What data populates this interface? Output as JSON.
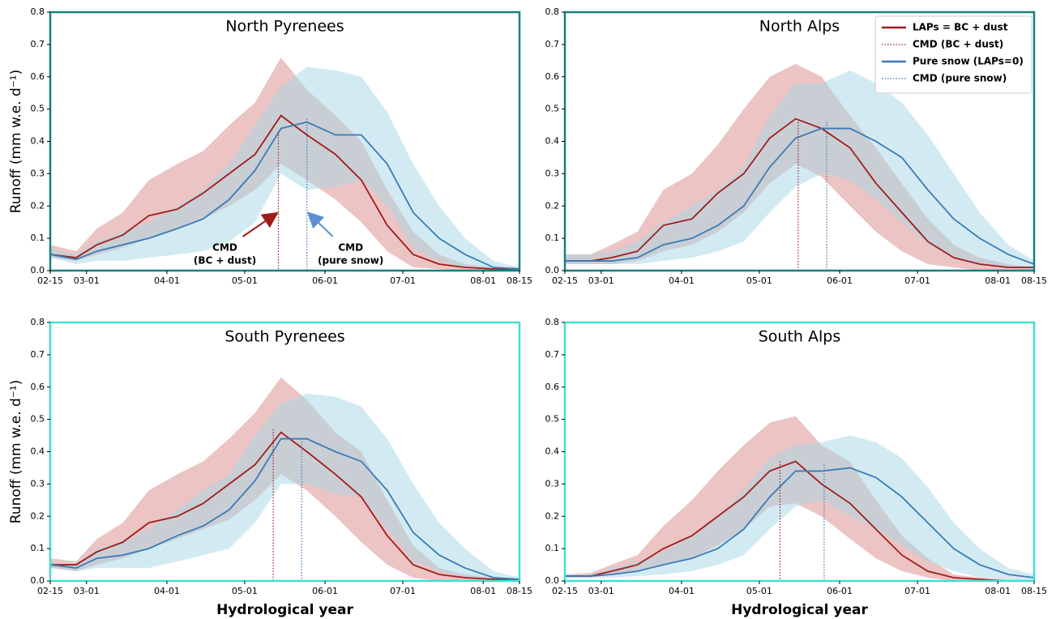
{
  "chart_data": [
    {
      "type": "line",
      "title": "North Pyrenees",
      "ylabel": "Runoff (mm w.e. d⁻¹)",
      "frame_color": "#1a7f7f",
      "x": [
        "02-15",
        "02-25",
        "03-05",
        "03-15",
        "03-25",
        "04-05",
        "04-15",
        "04-25",
        "05-05",
        "05-15",
        "05-25",
        "06-05",
        "06-15",
        "06-25",
        "07-05",
        "07-15",
        "07-25",
        "08-05",
        "08-15"
      ],
      "xlim": [
        "02-15",
        "08-15"
      ],
      "xticks": [
        "02-15",
        "03-01",
        "04-01",
        "05-01",
        "06-01",
        "07-01",
        "08-01",
        "08-15"
      ],
      "ylim": [
        0,
        0.8
      ],
      "yticks": [
        {
          "value": 0,
          "label": "0.0"
        },
        {
          "value": 0.1,
          "label": "0.1"
        },
        {
          "value": 0.2,
          "label": "0.2"
        },
        {
          "value": 0.3,
          "label": "0.3"
        },
        {
          "value": 0.4,
          "label": "0.4"
        },
        {
          "value": 0.5,
          "label": "0.5"
        },
        {
          "value": 0.6,
          "label": "0.6"
        },
        {
          "value": 0.7,
          "label": "0.7"
        },
        {
          "value": 0.8,
          "label": "0.8"
        }
      ],
      "series": [
        {
          "color": "#a01c1c",
          "band_color": "#d98a8a",
          "values": [
            0.05,
            0.04,
            0.08,
            0.11,
            0.17,
            0.19,
            0.24,
            0.3,
            0.36,
            0.48,
            0.42,
            0.36,
            0.28,
            0.14,
            0.05,
            0.02,
            0.01,
            0.005,
            0.005
          ],
          "low": [
            0.04,
            0.03,
            0.05,
            0.07,
            0.1,
            0.13,
            0.16,
            0.2,
            0.25,
            0.33,
            0.28,
            0.22,
            0.15,
            0.06,
            0.01,
            0.005,
            0,
            0,
            0
          ],
          "high": [
            0.08,
            0.06,
            0.13,
            0.18,
            0.28,
            0.33,
            0.37,
            0.45,
            0.52,
            0.66,
            0.56,
            0.48,
            0.4,
            0.25,
            0.12,
            0.05,
            0.02,
            0.01,
            0.01
          ]
        },
        {
          "color": "#3b7ab5",
          "band_color": "#a6d8e6",
          "values": [
            0.05,
            0.035,
            0.06,
            0.08,
            0.1,
            0.13,
            0.16,
            0.22,
            0.31,
            0.44,
            0.46,
            0.42,
            0.42,
            0.33,
            0.18,
            0.1,
            0.05,
            0.01,
            0.005
          ],
          "low": [
            0.04,
            0.02,
            0.03,
            0.03,
            0.04,
            0.05,
            0.06,
            0.09,
            0.15,
            0.3,
            0.25,
            0.26,
            0.28,
            0.2,
            0.07,
            0.03,
            0.01,
            0,
            0
          ],
          "high": [
            0.07,
            0.05,
            0.09,
            0.12,
            0.15,
            0.2,
            0.25,
            0.33,
            0.45,
            0.57,
            0.63,
            0.62,
            0.6,
            0.49,
            0.33,
            0.2,
            0.1,
            0.03,
            0.01
          ]
        }
      ],
      "cmd": [
        {
          "color": "#a01c1c",
          "x": "05-14",
          "y": 0.43
        },
        {
          "color": "#3b7ab5",
          "x": "05-25",
          "y": 0.47
        }
      ],
      "annotations": [
        {
          "lines": [
            "CMD",
            "(BC + dust)"
          ],
          "color": "#a01c1c"
        },
        {
          "lines": [
            "CMD",
            "(pure snow)"
          ],
          "color": "#5b8fd0"
        }
      ]
    },
    {
      "type": "line",
      "title": "North Alps",
      "frame_color": "#1a7f7f",
      "legend": "upper right",
      "x": [
        "02-15",
        "02-25",
        "03-05",
        "03-15",
        "03-25",
        "04-05",
        "04-15",
        "04-25",
        "05-05",
        "05-15",
        "05-25",
        "06-05",
        "06-15",
        "06-25",
        "07-05",
        "07-15",
        "07-25",
        "08-05",
        "08-15"
      ],
      "xlim": [
        "02-15",
        "08-15"
      ],
      "xticks": [
        "02-15",
        "03-01",
        "04-01",
        "05-01",
        "06-01",
        "07-01",
        "08-01",
        "08-15"
      ],
      "ylim": [
        0,
        0.8
      ],
      "yticks": [
        {
          "value": 0,
          "label": "0.0"
        },
        {
          "value": 0.1,
          "label": "0.1"
        },
        {
          "value": 0.2,
          "label": "0.2"
        },
        {
          "value": 0.3,
          "label": "0.3"
        },
        {
          "value": 0.4,
          "label": "0.4"
        },
        {
          "value": 0.5,
          "label": "0.5"
        },
        {
          "value": 0.6,
          "label": "0.6"
        },
        {
          "value": 0.7,
          "label": "0.7"
        },
        {
          "value": 0.8,
          "label": "0.8"
        }
      ],
      "series": [
        {
          "name": "LAPs = BC + dust",
          "color": "#a01c1c",
          "band_color": "#d98a8a",
          "values": [
            0.03,
            0.03,
            0.04,
            0.06,
            0.14,
            0.16,
            0.24,
            0.3,
            0.41,
            0.47,
            0.44,
            0.38,
            0.27,
            0.18,
            0.09,
            0.04,
            0.02,
            0.01,
            0.01
          ],
          "low": [
            0.02,
            0.02,
            0.02,
            0.03,
            0.06,
            0.08,
            0.12,
            0.18,
            0.27,
            0.33,
            0.29,
            0.2,
            0.12,
            0.06,
            0.02,
            0.01,
            0,
            0,
            0
          ],
          "high": [
            0.05,
            0.05,
            0.08,
            0.12,
            0.25,
            0.3,
            0.39,
            0.5,
            0.6,
            0.64,
            0.6,
            0.48,
            0.38,
            0.27,
            0.16,
            0.08,
            0.04,
            0.02,
            0.01
          ]
        },
        {
          "name": "Pure snow (LAPs=0)",
          "color": "#3b7ab5",
          "band_color": "#a6d8e6",
          "values": [
            0.03,
            0.03,
            0.03,
            0.04,
            0.08,
            0.1,
            0.14,
            0.2,
            0.32,
            0.41,
            0.44,
            0.44,
            0.4,
            0.35,
            0.25,
            0.16,
            0.1,
            0.05,
            0.02
          ],
          "low": [
            0.02,
            0.02,
            0.02,
            0.02,
            0.03,
            0.04,
            0.06,
            0.09,
            0.18,
            0.26,
            0.3,
            0.28,
            0.22,
            0.15,
            0.08,
            0.04,
            0.02,
            0.01,
            0
          ],
          "high": [
            0.05,
            0.05,
            0.06,
            0.09,
            0.15,
            0.2,
            0.25,
            0.32,
            0.48,
            0.58,
            0.58,
            0.62,
            0.58,
            0.52,
            0.42,
            0.3,
            0.18,
            0.08,
            0.03
          ]
        }
      ],
      "cmd": [
        {
          "name": "CMD (BC + dust)",
          "color": "#a01c1c",
          "x": "05-16",
          "y": 0.46
        },
        {
          "name": "CMD (pure snow)",
          "color": "#3b7ab5",
          "x": "05-27",
          "y": 0.46
        }
      ]
    },
    {
      "type": "line",
      "title": "South Pyrenees",
      "ylabel": "Runoff (mm w.e. d⁻¹)",
      "xlabel": "Hydrological year",
      "frame_color": "#40e0d0",
      "x": [
        "02-15",
        "02-25",
        "03-05",
        "03-15",
        "03-25",
        "04-05",
        "04-15",
        "04-25",
        "05-05",
        "05-15",
        "05-25",
        "06-05",
        "06-15",
        "06-25",
        "07-05",
        "07-15",
        "07-25",
        "08-05",
        "08-15"
      ],
      "xlim": [
        "02-15",
        "08-15"
      ],
      "xticks": [
        "02-15",
        "03-01",
        "04-01",
        "05-01",
        "06-01",
        "07-01",
        "08-01",
        "08-15"
      ],
      "ylim": [
        0,
        0.8
      ],
      "yticks": [
        {
          "value": 0,
          "label": "0.0"
        },
        {
          "value": 0.1,
          "label": "0.1"
        },
        {
          "value": 0.2,
          "label": "0.2"
        },
        {
          "value": 0.3,
          "label": "0.3"
        },
        {
          "value": 0.4,
          "label": "0.4"
        },
        {
          "value": 0.5,
          "label": "0.5"
        },
        {
          "value": 0.6,
          "label": "0.6"
        },
        {
          "value": 0.7,
          "label": "0.7"
        },
        {
          "value": 0.8,
          "label": "0.8"
        }
      ],
      "series": [
        {
          "color": "#a01c1c",
          "band_color": "#d98a8a",
          "values": [
            0.05,
            0.05,
            0.09,
            0.12,
            0.18,
            0.2,
            0.24,
            0.3,
            0.36,
            0.46,
            0.4,
            0.33,
            0.26,
            0.14,
            0.05,
            0.02,
            0.01,
            0.005,
            0.005
          ],
          "low": [
            0.04,
            0.03,
            0.05,
            0.07,
            0.1,
            0.13,
            0.16,
            0.19,
            0.25,
            0.33,
            0.28,
            0.2,
            0.12,
            0.05,
            0.01,
            0,
            0,
            0,
            0
          ],
          "high": [
            0.07,
            0.06,
            0.13,
            0.18,
            0.28,
            0.33,
            0.37,
            0.44,
            0.52,
            0.63,
            0.56,
            0.46,
            0.4,
            0.25,
            0.11,
            0.04,
            0.02,
            0.01,
            0.005
          ]
        },
        {
          "color": "#3b7ab5",
          "band_color": "#a6d8e6",
          "values": [
            0.05,
            0.04,
            0.07,
            0.08,
            0.1,
            0.14,
            0.17,
            0.22,
            0.31,
            0.44,
            0.44,
            0.4,
            0.37,
            0.28,
            0.15,
            0.08,
            0.04,
            0.01,
            0.005
          ],
          "low": [
            0.04,
            0.03,
            0.04,
            0.04,
            0.04,
            0.06,
            0.08,
            0.1,
            0.18,
            0.3,
            0.3,
            0.27,
            0.26,
            0.16,
            0.06,
            0.03,
            0.01,
            0,
            0
          ],
          "high": [
            0.06,
            0.05,
            0.1,
            0.12,
            0.16,
            0.22,
            0.28,
            0.33,
            0.45,
            0.55,
            0.58,
            0.57,
            0.54,
            0.44,
            0.3,
            0.18,
            0.1,
            0.03,
            0.01
          ]
        }
      ],
      "cmd": [
        {
          "color": "#a01c1c",
          "x": "05-12",
          "y": 0.47
        },
        {
          "color": "#3b7ab5",
          "x": "05-23",
          "y": 0.44
        }
      ]
    },
    {
      "type": "line",
      "title": "South Alps",
      "xlabel": "Hydrological year",
      "frame_color": "#40e0d0",
      "x": [
        "02-15",
        "02-25",
        "03-05",
        "03-15",
        "03-25",
        "04-05",
        "04-15",
        "04-25",
        "05-05",
        "05-15",
        "05-25",
        "06-05",
        "06-15",
        "06-25",
        "07-05",
        "07-15",
        "07-25",
        "08-05",
        "08-15"
      ],
      "xlim": [
        "02-15",
        "08-15"
      ],
      "xticks": [
        "02-15",
        "03-01",
        "04-01",
        "05-01",
        "06-01",
        "07-01",
        "08-01",
        "08-15"
      ],
      "ylim": [
        0,
        0.8
      ],
      "yticks": [
        {
          "value": 0,
          "label": "0.0"
        },
        {
          "value": 0.1,
          "label": "0.1"
        },
        {
          "value": 0.2,
          "label": "0.2"
        },
        {
          "value": 0.3,
          "label": "0.3"
        },
        {
          "value": 0.4,
          "label": "0.4"
        },
        {
          "value": 0.5,
          "label": "0.5"
        },
        {
          "value": 0.6,
          "label": "0.6"
        },
        {
          "value": 0.7,
          "label": "0.7"
        },
        {
          "value": 0.8,
          "label": "0.8"
        }
      ],
      "series": [
        {
          "color": "#a01c1c",
          "band_color": "#d98a8a",
          "values": [
            0.015,
            0.015,
            0.03,
            0.05,
            0.1,
            0.14,
            0.2,
            0.26,
            0.34,
            0.37,
            0.3,
            0.24,
            0.16,
            0.08,
            0.03,
            0.01,
            0.005,
            0,
            0
          ],
          "low": [
            0.01,
            0.01,
            0.02,
            0.03,
            0.05,
            0.07,
            0.11,
            0.16,
            0.23,
            0.24,
            0.2,
            0.13,
            0.07,
            0.03,
            0.01,
            0,
            0,
            0,
            0
          ],
          "high": [
            0.02,
            0.025,
            0.05,
            0.08,
            0.17,
            0.25,
            0.34,
            0.42,
            0.49,
            0.51,
            0.42,
            0.37,
            0.25,
            0.14,
            0.07,
            0.02,
            0.01,
            0,
            0
          ]
        },
        {
          "color": "#3b7ab5",
          "band_color": "#a6d8e6",
          "values": [
            0.015,
            0.015,
            0.02,
            0.03,
            0.05,
            0.07,
            0.1,
            0.16,
            0.26,
            0.34,
            0.34,
            0.35,
            0.32,
            0.26,
            0.18,
            0.1,
            0.05,
            0.02,
            0.01
          ],
          "low": [
            0.01,
            0.01,
            0.01,
            0.015,
            0.02,
            0.03,
            0.05,
            0.08,
            0.16,
            0.23,
            0.25,
            0.2,
            0.16,
            0.11,
            0.06,
            0.03,
            0.01,
            0,
            0
          ],
          "high": [
            0.02,
            0.02,
            0.04,
            0.06,
            0.09,
            0.14,
            0.2,
            0.28,
            0.38,
            0.42,
            0.43,
            0.45,
            0.43,
            0.38,
            0.29,
            0.18,
            0.1,
            0.04,
            0.02
          ]
        }
      ],
      "cmd": [
        {
          "color": "#a01c1c",
          "x": "05-09",
          "y": 0.37
        },
        {
          "color": "#3b7ab5",
          "x": "05-26",
          "y": 0.36
        }
      ]
    }
  ]
}
